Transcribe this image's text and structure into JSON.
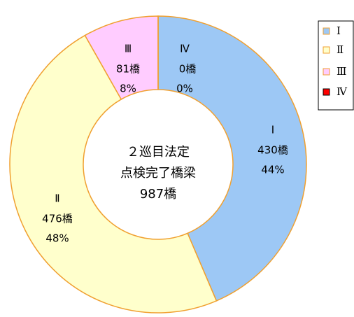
{
  "chart_data": {
    "type": "donut",
    "categories": [
      "Ⅰ",
      "Ⅱ",
      "Ⅲ",
      "Ⅳ"
    ],
    "values": [
      430,
      476,
      81,
      0
    ],
    "value_labels": [
      "430橋",
      "476橋",
      "81橋",
      "0橋"
    ],
    "percents": [
      44,
      48,
      8,
      0
    ],
    "percent_labels": [
      "44%",
      "48%",
      "8%",
      "0%"
    ],
    "colors": [
      "#9dc8f5",
      "#ffffcc",
      "#ffccff",
      "#ff0000"
    ],
    "center_label": [
      "２巡目法定",
      "点検完了橋梁",
      "987橋"
    ],
    "legend": "top-right"
  }
}
